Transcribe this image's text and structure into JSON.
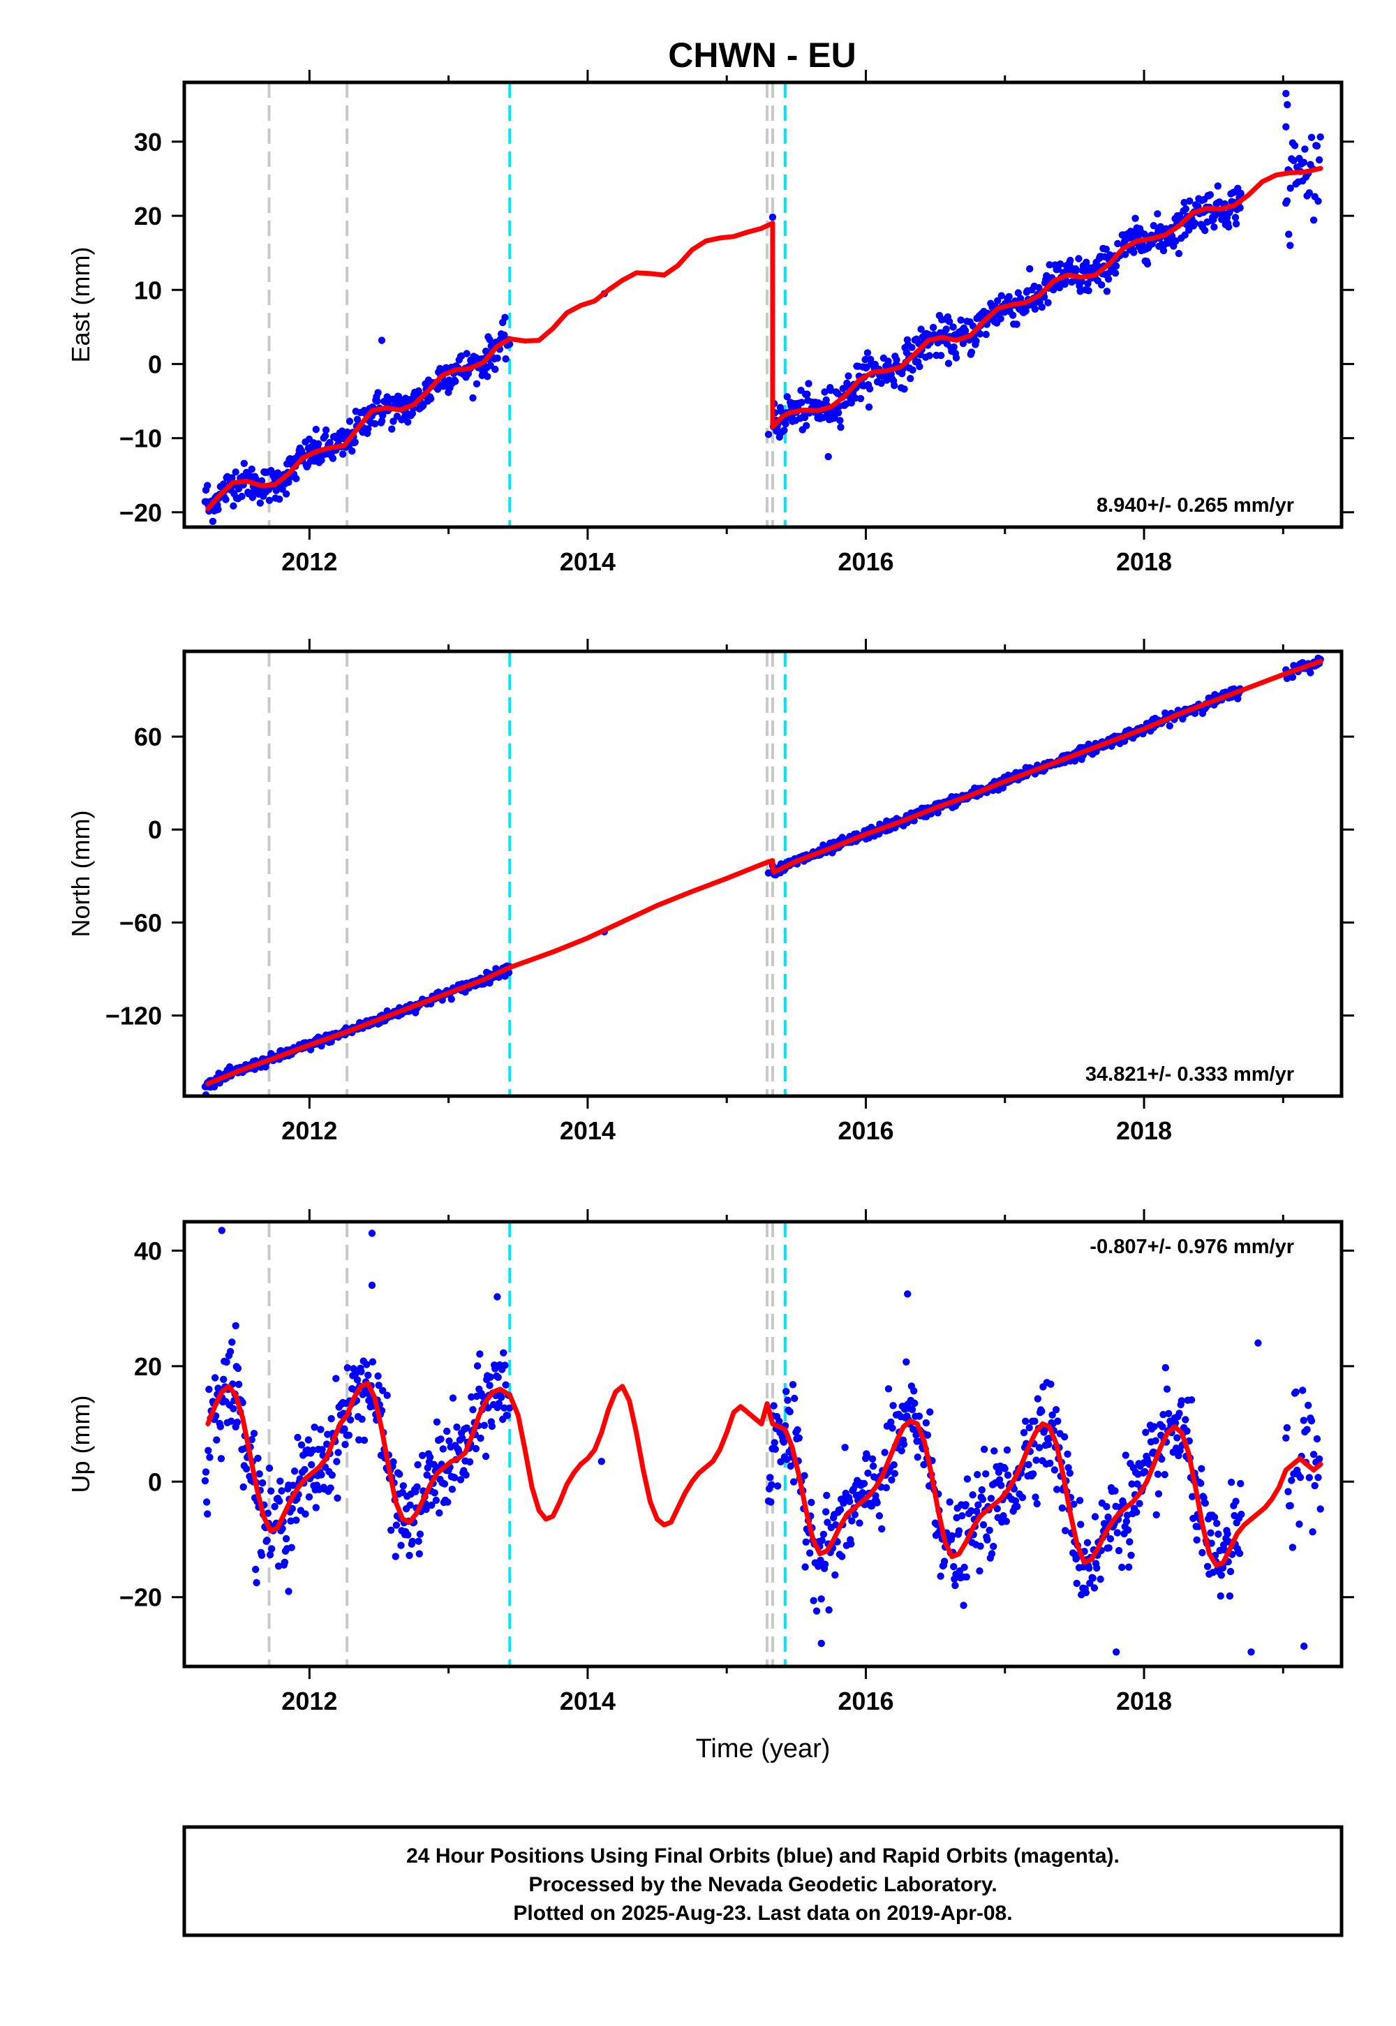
{
  "title": "CHWN - EU",
  "footer": {
    "lines": [
      "24 Hour Positions Using Final Orbits (blue) and Rapid Orbits (magenta).",
      "Processed by the Nevada Geodetic Laboratory.",
      "Plotted on 2025-Aug-23. Last data on 2019-Apr-08."
    ]
  },
  "colors": {
    "final_orbits": "#0000ff",
    "model": "#ff0000",
    "equipment_change": "#c8c8c8",
    "event": "#00e5ff"
  },
  "chart_data": [
    {
      "type": "scatter",
      "name": "east",
      "ylabel": "East (mm)",
      "xlabel": "",
      "xlim": [
        2011.1,
        2019.42
      ],
      "ylim": [
        -22,
        38
      ],
      "xticks": [
        2012,
        2014,
        2016,
        2018
      ],
      "yticks": [
        -20,
        -10,
        0,
        10,
        20,
        30
      ],
      "rate_label": "8.940+/- 0.265 mm/yr",
      "rate_position": "bottom-right",
      "equipment_changes": [
        2011.71,
        2012.27,
        2015.29,
        2015.33
      ],
      "events": [
        2013.44,
        2015.42
      ],
      "model_segments": [
        {
          "x": [
            2011.27,
            2011.35,
            2011.45,
            2011.55,
            2011.65,
            2011.75,
            2011.85,
            2011.95,
            2012.05,
            2012.15,
            2012.25,
            2012.35,
            2012.45,
            2012.55,
            2012.65,
            2012.75,
            2012.85,
            2012.95,
            2013.05,
            2013.15,
            2013.25,
            2013.35,
            2013.44,
            2013.55,
            2013.65,
            2013.75,
            2013.85,
            2013.95,
            2014.05,
            2014.15,
            2014.25,
            2014.35,
            2014.45,
            2014.55,
            2014.65,
            2014.75,
            2014.85,
            2014.95,
            2015.05,
            2015.15,
            2015.25,
            2015.33
          ],
          "y": [
            -19.5,
            -17.8,
            -16.0,
            -15.8,
            -16.4,
            -16.3,
            -14.8,
            -12.7,
            -11.8,
            -11.3,
            -11.0,
            -8.6,
            -6.3,
            -5.9,
            -6.2,
            -5.5,
            -3.7,
            -1.6,
            -0.8,
            -0.6,
            0.2,
            2.4,
            3.4,
            3.1,
            3.2,
            4.8,
            6.9,
            7.9,
            8.5,
            10.0,
            11.3,
            12.3,
            12.2,
            12.0,
            13.3,
            15.4,
            16.6,
            17.0,
            17.2,
            17.8,
            18.3,
            19.0
          ]
        },
        {
          "x": [
            2015.33,
            2015.4,
            2015.45,
            2015.55,
            2015.65,
            2015.75,
            2015.85,
            2015.95,
            2016.05,
            2016.15,
            2016.25,
            2016.35,
            2016.45,
            2016.55,
            2016.65,
            2016.75,
            2016.85,
            2016.95,
            2017.05,
            2017.15,
            2017.25,
            2017.35,
            2017.45,
            2017.55,
            2017.65,
            2017.75,
            2017.85,
            2017.95,
            2018.05,
            2018.15,
            2018.25,
            2018.35,
            2018.45,
            2018.55,
            2018.65,
            2018.75,
            2018.85,
            2018.95,
            2019.05,
            2019.15,
            2019.27
          ],
          "y": [
            -8.5,
            -7.1,
            -6.6,
            -6.2,
            -6.3,
            -5.8,
            -4.3,
            -2.2,
            -1.1,
            -0.9,
            -0.4,
            1.3,
            3.2,
            3.6,
            3.2,
            3.8,
            5.8,
            7.5,
            8.0,
            8.3,
            9.3,
            11.2,
            12.0,
            11.7,
            12.0,
            13.5,
            15.6,
            16.6,
            16.9,
            17.4,
            18.6,
            20.4,
            21.0,
            20.9,
            21.4,
            22.8,
            24.6,
            25.5,
            25.8,
            25.9,
            26.4
          ]
        }
      ],
      "observations": {
        "spans": [
          {
            "x0": 2011.25,
            "x1": 2013.44,
            "rate": 8.94,
            "y_at_x0": -18.2,
            "scatter": 1.2,
            "step": 0.0055
          },
          {
            "x0": 2015.33,
            "x1": 2018.7,
            "rate": 8.94,
            "y_at_x0": -7.5,
            "scatter": 1.3,
            "step": 0.0055
          },
          {
            "x0": 2019.02,
            "x1": 2019.27,
            "rate": 12.0,
            "y_at_x0": 24.0,
            "scatter": 2.8,
            "step": 0.008
          }
        ],
        "outliers": [
          [
            2014.12,
            9.5
          ],
          [
            2012.52,
            3.2
          ],
          [
            2015.73,
            -12.5
          ],
          [
            2015.3,
            -9.5
          ],
          [
            2019.02,
            36.5
          ],
          [
            2019.03,
            35.0
          ],
          [
            2019.02,
            32.0
          ],
          [
            2019.05,
            16.0
          ],
          [
            2019.04,
            17.5
          ]
        ]
      }
    },
    {
      "type": "scatter",
      "name": "north",
      "ylabel": "North (mm)",
      "xlabel": "",
      "xlim": [
        2011.1,
        2019.42
      ],
      "ylim": [
        -172,
        115
      ],
      "xticks": [
        2012,
        2014,
        2016,
        2018
      ],
      "yticks": [
        -120,
        -60,
        0,
        60
      ],
      "rate_label": "34.821+/- 0.333 mm/yr",
      "rate_position": "bottom-right",
      "equipment_changes": [
        2011.71,
        2012.27,
        2015.29,
        2015.33
      ],
      "events": [
        2013.44,
        2015.42
      ],
      "model_segments": [
        {
          "x": [
            2011.27,
            2011.5,
            2011.75,
            2012.0,
            2012.27,
            2012.5,
            2012.75,
            2013.0,
            2013.25,
            2013.44
          ],
          "y": [
            -164.0,
            -155.5,
            -147.5,
            -139.0,
            -130.5,
            -122.5,
            -114.0,
            -105.5,
            -97.0,
            -89.0
          ]
        },
        {
          "x": [
            2013.44,
            2013.75,
            2014.0,
            2014.25,
            2014.5,
            2014.75,
            2015.0,
            2015.25,
            2015.33
          ],
          "y": [
            -89.0,
            -79.0,
            -70.0,
            -59.5,
            -49.0,
            -40.0,
            -31.5,
            -22.5,
            -20.0
          ]
        },
        {
          "x": [
            2015.33,
            2015.34,
            2015.5,
            2015.75,
            2016.0,
            2016.25,
            2016.5,
            2016.75,
            2017.0,
            2017.25,
            2017.5,
            2017.75,
            2018.0,
            2018.25,
            2018.5,
            2018.75,
            2019.0,
            2019.27
          ],
          "y": [
            -26.0,
            -27.5,
            -20.5,
            -12.0,
            -3.0,
            5.0,
            14.0,
            22.0,
            31.0,
            39.5,
            48.0,
            56.5,
            65.0,
            74.5,
            83.0,
            91.5,
            100.0,
            108.5
          ]
        }
      ],
      "observations": {
        "spans": [
          {
            "x0": 2011.25,
            "x1": 2013.44,
            "rate": 34.821,
            "y_at_x0": -165.0,
            "scatter": 1.6,
            "step": 0.0055
          },
          {
            "x0": 2015.33,
            "x1": 2018.7,
            "rate": 34.821,
            "y_at_x0": -24.5,
            "scatter": 1.7,
            "step": 0.0055
          },
          {
            "x0": 2019.02,
            "x1": 2019.27,
            "rate": 34.821,
            "y_at_x0": 99.5,
            "scatter": 2.2,
            "step": 0.008
          }
        ],
        "outliers": [
          [
            2014.12,
            -66.0
          ],
          [
            2015.3,
            -28.0
          ]
        ]
      }
    },
    {
      "type": "scatter",
      "name": "up",
      "ylabel": "Up (mm)",
      "xlabel": "Time (year)",
      "xlim": [
        2011.1,
        2019.42
      ],
      "ylim": [
        -32,
        45
      ],
      "xticks": [
        2012,
        2014,
        2016,
        2018
      ],
      "yticks": [
        -20,
        0,
        20,
        40
      ],
      "rate_label": "-0.807+/- 0.976 mm/yr",
      "rate_position": "top-right",
      "equipment_changes": [
        2011.71,
        2012.27,
        2015.29,
        2015.33
      ],
      "events": [
        2013.44,
        2015.42
      ],
      "model_segments": [
        {
          "x": [
            2011.27,
            2011.32,
            2011.37,
            2011.42,
            2011.47,
            2011.52,
            2011.57,
            2011.62,
            2011.67,
            2011.72,
            2011.77,
            2011.82,
            2011.87,
            2011.92,
            2011.97,
            2012.02,
            2012.07,
            2012.12,
            2012.17,
            2012.22,
            2012.27,
            2012.32,
            2012.37,
            2012.42,
            2012.47,
            2012.52,
            2012.57,
            2012.62,
            2012.67,
            2012.72,
            2012.77,
            2012.82,
            2012.87,
            2012.92,
            2012.97,
            2013.02,
            2013.07,
            2013.12,
            2013.17,
            2013.22,
            2013.27,
            2013.32,
            2013.37,
            2013.44,
            2013.5,
            2013.55,
            2013.6,
            2013.65,
            2013.7,
            2013.75,
            2013.8,
            2013.85,
            2013.9,
            2013.95,
            2014.0,
            2014.05,
            2014.1,
            2014.15,
            2014.2,
            2014.25,
            2014.3,
            2014.35,
            2014.4,
            2014.45,
            2014.5,
            2014.55,
            2014.6,
            2014.65,
            2014.7,
            2014.75,
            2014.8,
            2014.85,
            2014.9,
            2014.95,
            2015.0,
            2015.05,
            2015.1,
            2015.15,
            2015.2,
            2015.25,
            2015.29
          ],
          "y": [
            10.0,
            13.0,
            15.5,
            16.5,
            15.0,
            11.0,
            5.0,
            -1.0,
            -6.0,
            -8.5,
            -8.0,
            -5.5,
            -3.0,
            -1.0,
            0.5,
            1.5,
            2.5,
            4.0,
            7.0,
            10.0,
            11.5,
            14.5,
            16.5,
            17.0,
            14.5,
            9.0,
            2.5,
            -3.5,
            -6.5,
            -7.0,
            -5.5,
            -3.0,
            -0.5,
            1.5,
            2.5,
            3.5,
            4.0,
            5.0,
            8.0,
            11.5,
            14.0,
            15.5,
            16.0,
            15.0,
            11.5,
            5.5,
            -1.0,
            -5.0,
            -6.5,
            -6.0,
            -3.5,
            -0.5,
            1.5,
            3.0,
            4.0,
            5.5,
            8.5,
            12.5,
            15.5,
            16.5,
            14.0,
            8.5,
            2.0,
            -3.5,
            -6.5,
            -7.5,
            -7.0,
            -4.5,
            -2.0,
            0.0,
            1.5,
            2.5,
            3.5,
            5.5,
            8.5,
            12.0,
            13.0,
            12.0,
            11.0,
            10.0,
            13.5
          ]
        },
        {
          "x": [
            2015.33,
            2015.38,
            2015.42,
            2015.47,
            2015.52,
            2015.57,
            2015.62,
            2015.67,
            2015.72,
            2015.77,
            2015.82,
            2015.87,
            2015.92,
            2015.97,
            2016.02,
            2016.07,
            2016.12,
            2016.17,
            2016.22,
            2016.27,
            2016.32,
            2016.37,
            2016.42,
            2016.47,
            2016.52,
            2016.57,
            2016.62,
            2016.67,
            2016.72,
            2016.77,
            2016.82,
            2016.87,
            2016.92,
            2016.97,
            2017.02,
            2017.07,
            2017.12,
            2017.17,
            2017.22,
            2017.27,
            2017.32,
            2017.37,
            2017.42,
            2017.47,
            2017.52,
            2017.57,
            2017.62,
            2017.67,
            2017.72,
            2017.77,
            2017.82,
            2017.87,
            2017.92,
            2017.97,
            2018.02,
            2018.07,
            2018.12,
            2018.17,
            2018.22,
            2018.27,
            2018.32,
            2018.37,
            2018.42,
            2018.47,
            2018.52,
            2018.57,
            2018.62,
            2018.67,
            2018.72,
            2018.77,
            2018.82,
            2018.87,
            2018.92,
            2018.97,
            2019.02,
            2019.07,
            2019.12,
            2019.17,
            2019.22,
            2019.27
          ],
          "y": [
            10.0,
            9.5,
            9.0,
            6.0,
            1.0,
            -5.0,
            -10.0,
            -12.5,
            -12.0,
            -10.0,
            -7.5,
            -5.5,
            -4.5,
            -3.5,
            -2.5,
            -1.0,
            1.0,
            4.0,
            7.0,
            9.5,
            10.5,
            10.0,
            7.0,
            1.5,
            -5.0,
            -10.5,
            -13.0,
            -12.5,
            -10.5,
            -8.0,
            -6.0,
            -5.0,
            -4.0,
            -3.0,
            -1.5,
            0.5,
            3.0,
            6.0,
            8.5,
            10.0,
            9.5,
            6.5,
            1.0,
            -5.5,
            -11.0,
            -14.0,
            -13.5,
            -11.5,
            -9.0,
            -7.0,
            -5.5,
            -4.5,
            -3.5,
            -2.0,
            0.0,
            3.0,
            6.0,
            8.5,
            9.5,
            8.5,
            5.0,
            -1.0,
            -7.5,
            -12.5,
            -14.5,
            -14.0,
            -11.5,
            -9.0,
            -7.5,
            -6.5,
            -5.5,
            -4.5,
            -3.0,
            -1.0,
            2.0,
            3.0,
            4.0,
            3.0,
            2.0,
            3.0
          ]
        }
      ],
      "observations": {
        "spans": [
          {
            "x0": 2011.25,
            "x1": 2013.44,
            "rate": 0.0,
            "y_at_x0": 0.0,
            "scatter": 4.0,
            "step": 0.0055,
            "follow_model": true
          },
          {
            "x0": 2015.3,
            "x1": 2018.7,
            "rate": 0.0,
            "y_at_x0": 0.0,
            "scatter": 4.2,
            "step": 0.0055,
            "follow_model": true
          },
          {
            "x0": 2019.02,
            "x1": 2019.27,
            "rate": 0.0,
            "y_at_x0": 0.0,
            "scatter": 6.0,
            "step": 0.008,
            "follow_model": true
          }
        ],
        "outliers": [
          [
            2011.37,
            43.5
          ],
          [
            2012.45,
            43.0
          ],
          [
            2012.45,
            34.0
          ],
          [
            2016.3,
            32.5
          ],
          [
            2013.35,
            32.0
          ],
          [
            2011.47,
            27.0
          ],
          [
            2018.82,
            24.0
          ],
          [
            2014.1,
            3.5
          ],
          [
            2018.77,
            -29.5
          ],
          [
            2017.8,
            -29.5
          ],
          [
            2019.15,
            -28.5
          ],
          [
            2015.68,
            -28.0
          ],
          [
            2011.85,
            -19.0
          ],
          [
            2011.62,
            -17.5
          ]
        ]
      }
    }
  ]
}
